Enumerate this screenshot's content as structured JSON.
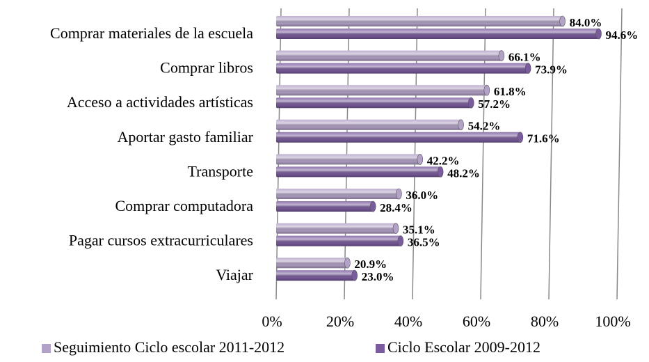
{
  "chart_data": {
    "type": "bar",
    "orientation": "horizontal",
    "categories": [
      "Comprar materiales de la escuela",
      "Comprar libros",
      "Acceso a actividades artísticas",
      "Aportar gasto familiar",
      "Transporte",
      "Comprar computadora",
      "Pagar cursos extracurriculares",
      "Viajar"
    ],
    "series": [
      {
        "name": "Seguimiento Ciclo escolar 2011-2012",
        "color": "#b3a2c7",
        "values": [
          84.0,
          66.1,
          61.8,
          54.2,
          42.2,
          36.0,
          35.1,
          20.9
        ],
        "value_labels": [
          "84.0%",
          "66.1%",
          "61.8%",
          "54.2%",
          "42.2%",
          "36.0%",
          "35.1%",
          "20.9%"
        ]
      },
      {
        "name": "Ciclo Escolar 2009-2012",
        "color": "#7a5c9e",
        "values": [
          94.6,
          73.9,
          57.2,
          71.6,
          48.2,
          28.4,
          36.5,
          23.0
        ],
        "value_labels": [
          "94.6%",
          "73.9%",
          "57.2%",
          "71.6%",
          "48.2%",
          "28.4%",
          "36.5%",
          "23.0%"
        ]
      }
    ],
    "xlim": [
      0,
      100
    ],
    "xticks": [
      {
        "value": 0,
        "label": "0%"
      },
      {
        "value": 20,
        "label": "20%"
      },
      {
        "value": 40,
        "label": "40%"
      },
      {
        "value": 60,
        "label": "60%"
      },
      {
        "value": 80,
        "label": "80%"
      },
      {
        "value": 100,
        "label": "100%"
      }
    ],
    "grid": true,
    "legend": "bottom"
  }
}
